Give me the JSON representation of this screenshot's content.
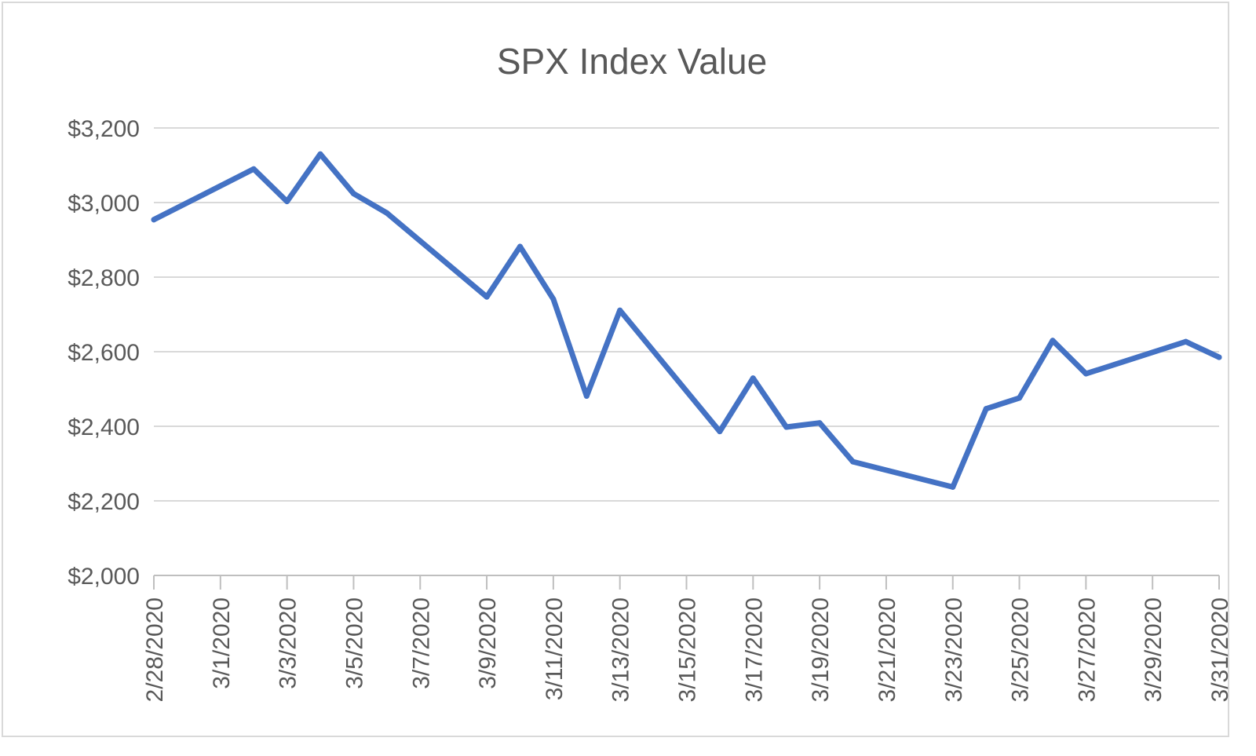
{
  "chart_data": {
    "type": "line",
    "title": "SPX Index Value",
    "xlabel": "",
    "ylabel": "",
    "ylim": [
      2000,
      3200
    ],
    "yticks": [
      2000,
      2200,
      2400,
      2600,
      2800,
      3000,
      3200
    ],
    "ytick_labels": [
      "$2,000",
      "$2,200",
      "$2,400",
      "$2,600",
      "$2,800",
      "$3,000",
      "$3,200"
    ],
    "xlim": [
      "2/28/2020",
      "3/31/2020"
    ],
    "xtick_labels": [
      "2/28/2020",
      "3/1/2020",
      "3/3/2020",
      "3/5/2020",
      "3/7/2020",
      "3/9/2020",
      "3/11/2020",
      "3/13/2020",
      "3/15/2020",
      "3/17/2020",
      "3/19/2020",
      "3/21/2020",
      "3/23/2020",
      "3/25/2020",
      "3/27/2020",
      "3/29/2020",
      "3/31/2020"
    ],
    "grid": true,
    "legend": "none",
    "series_color": "#4472c4",
    "series": [
      {
        "x": [
          "2/28/2020",
          "3/2/2020",
          "3/3/2020",
          "3/4/2020",
          "3/5/2020",
          "3/6/2020",
          "3/9/2020",
          "3/10/2020",
          "3/11/2020",
          "3/12/2020",
          "3/13/2020",
          "3/16/2020",
          "3/17/2020",
          "3/18/2020",
          "3/19/2020",
          "3/20/2020",
          "3/23/2020",
          "3/24/2020",
          "3/25/2020",
          "3/26/2020",
          "3/27/2020",
          "3/30/2020",
          "3/31/2020"
        ],
        "values": [
          2954,
          3090,
          3003,
          3130,
          3024,
          2972,
          2747,
          2882,
          2741,
          2481,
          2711,
          2386,
          2529,
          2398,
          2409,
          2305,
          2237,
          2447,
          2476,
          2630,
          2541,
          2627,
          2585
        ]
      }
    ]
  }
}
